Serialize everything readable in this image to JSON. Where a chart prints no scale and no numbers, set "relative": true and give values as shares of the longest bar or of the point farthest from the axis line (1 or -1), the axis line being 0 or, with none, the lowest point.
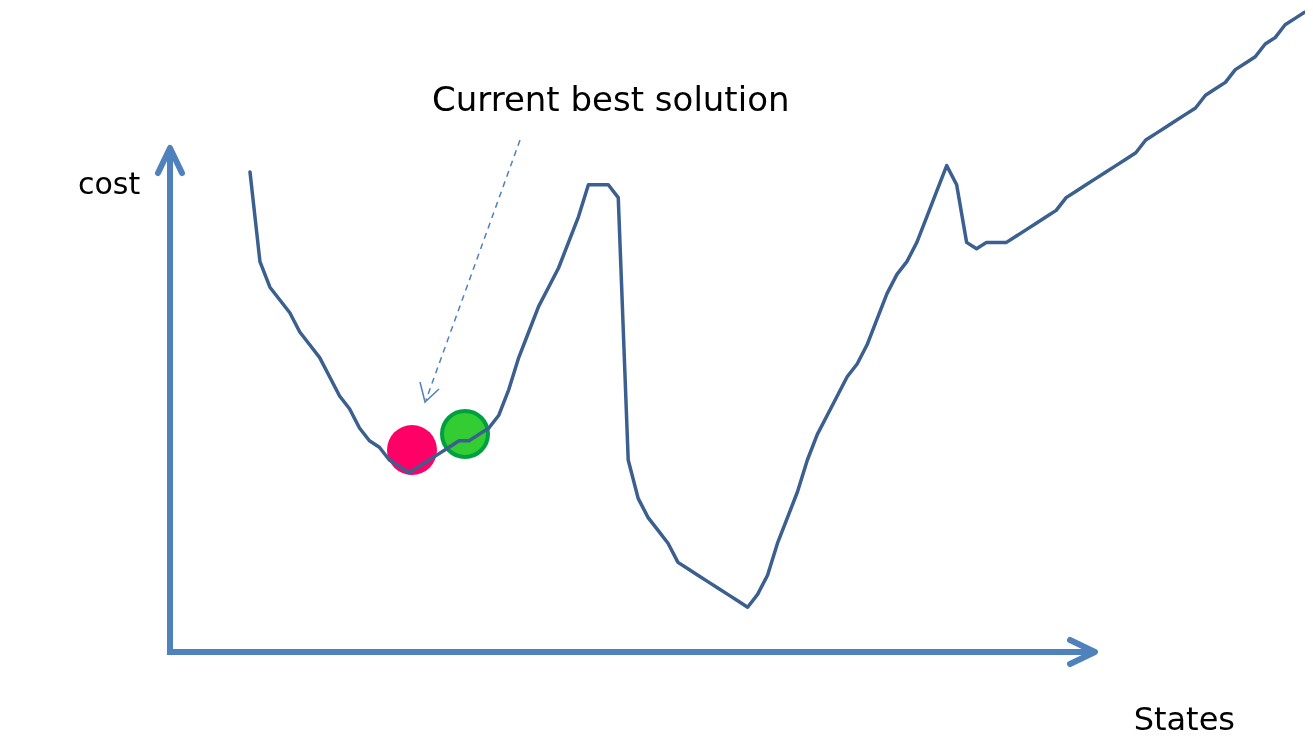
{
  "chart_data": {
    "type": "line",
    "relative": true,
    "xlabel": "States",
    "ylabel": "cost",
    "annotations": [
      "Current best solution"
    ],
    "marker": "none",
    "grid": false,
    "tick_labels": false,
    "categories": [
      null,
      null,
      null,
      null,
      null,
      null,
      null,
      null,
      null,
      null,
      null,
      null,
      null,
      null,
      null,
      null,
      null,
      null,
      null,
      null,
      null,
      null,
      null,
      null,
      null,
      null,
      null,
      null,
      null,
      null,
      null,
      null,
      null,
      null,
      null,
      null,
      null,
      null,
      null,
      null,
      null,
      null,
      null,
      null,
      null,
      null,
      null,
      null,
      null,
      null,
      null,
      null,
      null,
      null,
      null,
      null,
      null,
      null,
      null,
      null,
      null,
      null,
      null,
      null,
      null,
      null,
      null,
      null,
      null,
      null,
      null,
      null,
      null,
      null,
      null,
      null,
      null,
      null,
      null,
      null,
      null,
      null,
      null,
      null,
      null,
      null,
      null,
      null,
      null,
      null,
      null,
      null,
      null,
      null,
      null,
      null,
      null,
      null,
      null,
      null,
      null,
      null,
      null,
      null,
      null,
      null,
      null
    ],
    "series": [
      {
        "color": "#3b5f8f",
        "values": [
          0.75,
          0.61,
          0.57,
          0.55,
          0.53,
          0.5,
          0.48,
          0.46,
          0.43,
          0.4,
          0.38,
          0.35,
          0.33,
          0.32,
          0.3,
          0.29,
          0.28,
          0.29,
          0.3,
          0.31,
          0.32,
          0.33,
          0.33,
          0.34,
          0.35,
          0.37,
          0.41,
          0.46,
          0.5,
          0.54,
          0.57,
          0.6,
          0.64,
          0.68,
          0.73,
          0.73,
          0.73,
          0.71,
          0.3,
          0.24,
          0.21,
          0.19,
          0.17,
          0.14,
          0.13,
          0.12,
          0.11,
          0.1,
          0.09,
          0.08,
          0.07,
          0.09,
          0.12,
          0.17,
          0.21,
          0.25,
          0.3,
          0.34,
          0.37,
          0.4,
          0.43,
          0.45,
          0.48,
          0.52,
          0.56,
          0.59,
          0.61,
          0.64,
          0.68,
          0.72,
          0.76,
          0.73,
          0.64,
          0.63,
          0.64,
          0.64,
          0.64,
          0.65,
          0.66,
          0.67,
          0.68,
          0.69,
          0.71,
          0.72,
          0.73,
          0.74,
          0.75,
          0.76,
          0.77,
          0.78,
          0.8,
          0.81,
          0.82,
          0.83,
          0.84,
          0.85,
          0.87,
          0.88,
          0.89,
          0.91,
          0.92,
          0.93,
          0.95,
          0.96,
          0.98,
          0.99,
          1.0
        ]
      }
    ]
  }
}
